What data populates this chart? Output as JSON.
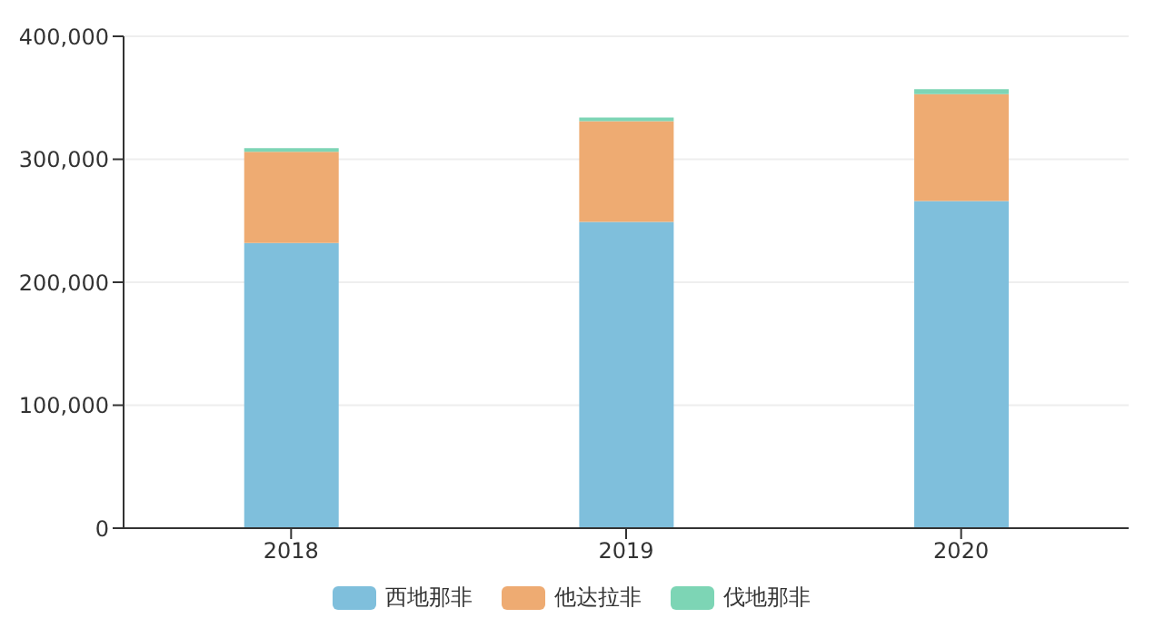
{
  "chart_data": {
    "type": "bar",
    "stacked": true,
    "categories": [
      "2018",
      "2019",
      "2020"
    ],
    "series": [
      {
        "name": "西地那非",
        "color": "#7fbfdc",
        "values": [
          232000,
          249000,
          266000
        ]
      },
      {
        "name": "他达拉非",
        "color": "#eeab72",
        "values": [
          74000,
          82000,
          87000
        ]
      },
      {
        "name": "伐地那非",
        "color": "#7dd5b5",
        "values": [
          3000,
          3000,
          4000
        ]
      }
    ],
    "ylim": [
      0,
      400000
    ],
    "yticks": [
      0,
      {
        "value": 100000,
        "label": "100,000"
      },
      {
        "value": 200000,
        "label": "200,000"
      },
      {
        "value": 300000,
        "label": "300,000"
      },
      {
        "value": 400000,
        "label": "400,000"
      }
    ],
    "grid": "y",
    "legend": "bottom"
  }
}
